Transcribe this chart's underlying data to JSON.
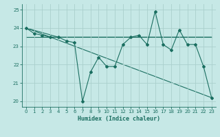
{
  "xlabel": "Humidex (Indice chaleur)",
  "ylabel": "",
  "bg_color": "#c6e8e6",
  "line_color": "#1a6e60",
  "grid_color": "#aacfcc",
  "xlim": [
    -0.5,
    23.5
  ],
  "ylim": [
    19.7,
    25.3
  ],
  "xticks": [
    0,
    1,
    2,
    3,
    4,
    5,
    6,
    7,
    8,
    9,
    10,
    11,
    12,
    13,
    14,
    15,
    16,
    17,
    18,
    19,
    20,
    21,
    22,
    23
  ],
  "yticks": [
    20,
    21,
    22,
    23,
    24,
    25
  ],
  "series1": {
    "x": [
      0,
      1,
      2,
      3,
      4,
      5,
      6,
      7,
      8,
      9,
      10,
      11,
      12,
      13,
      14,
      15,
      16,
      17,
      18,
      19,
      20,
      21,
      22,
      23
    ],
    "y": [
      24.0,
      23.7,
      23.6,
      23.5,
      23.5,
      23.3,
      23.2,
      20.0,
      21.6,
      22.4,
      21.9,
      21.9,
      23.1,
      23.5,
      23.6,
      23.1,
      24.9,
      23.1,
      22.8,
      23.9,
      23.1,
      23.1,
      21.9,
      20.2
    ]
  },
  "series2": {
    "x": [
      0,
      4,
      23
    ],
    "y": [
      24.0,
      23.5,
      23.5
    ]
  },
  "series3": {
    "x": [
      0,
      23
    ],
    "y": [
      24.0,
      20.2
    ]
  },
  "series4": {
    "x": [
      0,
      23
    ],
    "y": [
      23.5,
      23.5
    ]
  }
}
